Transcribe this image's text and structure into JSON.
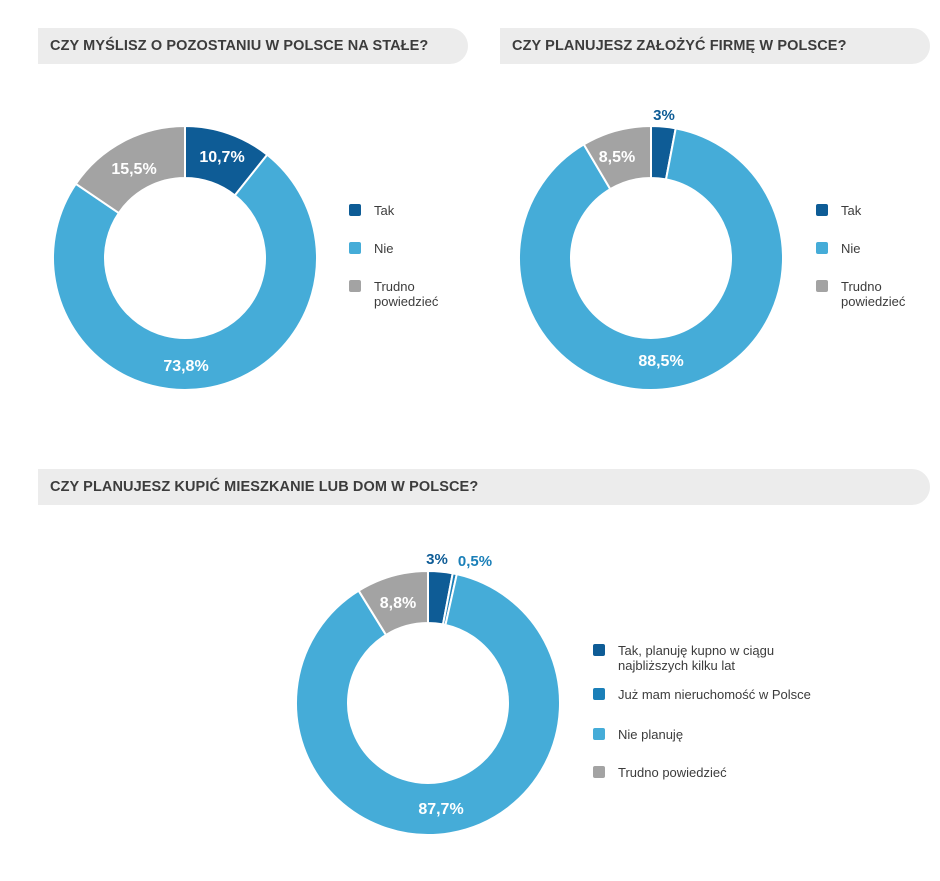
{
  "charts": [
    {
      "title": "CZY MYŚLISZ O POZOSTANIU W POLSCE NA STAŁE?",
      "legend": [
        "Tak",
        "Nie",
        "Trudno\npowiedzieć"
      ]
    },
    {
      "title": "CZY PLANUJESZ ZAŁOŻYĆ FIRMĘ W POLSCE?",
      "legend": [
        "Tak",
        "Nie",
        "Trudno\npowiedzieć"
      ]
    },
    {
      "title": "CZY PLANUJESZ KUPIĆ MIESZKANIE LUB DOM W POLSCE?",
      "legend": [
        "Tak, planuję kupno w ciągu\nnajbliższych kilku lat",
        "Już mam nieruchomość w Polsce",
        "Nie planuję",
        "Trudno powiedzieć"
      ]
    }
  ],
  "colors": {
    "dark_blue": "#0e5c96",
    "mid_blue": "#1a7fb8",
    "light_blue": "#45acd8",
    "gray": "#a3a3a3"
  },
  "chart_data": [
    {
      "type": "pie",
      "title": "CZY MYŚLISZ O POZOSTANIU W POLSCE NA STAŁE?",
      "categories": [
        "Tak",
        "Nie",
        "Trudno powiedzieć"
      ],
      "values": [
        10.7,
        73.8,
        15.5
      ],
      "labels": [
        "10,7%",
        "73,8%",
        "15,5%"
      ],
      "colors": [
        "#0e5c96",
        "#45acd8",
        "#a3a3a3"
      ],
      "donut": true,
      "legend": "right"
    },
    {
      "type": "pie",
      "title": "CZY PLANUJESZ ZAŁOŻYĆ FIRMĘ W POLSCE?",
      "categories": [
        "Tak",
        "Nie",
        "Trudno powiedzieć"
      ],
      "values": [
        3,
        88.5,
        8.5
      ],
      "labels": [
        "3%",
        "88,5%",
        "8,5%"
      ],
      "colors": [
        "#0e5c96",
        "#45acd8",
        "#a3a3a3"
      ],
      "donut": true,
      "legend": "right"
    },
    {
      "type": "pie",
      "title": "CZY PLANUJESZ KUPIĆ MIESZKANIE LUB DOM W POLSCE?",
      "categories": [
        "Tak, planuję kupno w ciągu najbliższych kilku lat",
        "Już mam nieruchomość w Polsce",
        "Nie planuję",
        "Trudno powiedzieć"
      ],
      "values": [
        3,
        0.5,
        87.7,
        8.8
      ],
      "labels": [
        "3%",
        "0,5%",
        "87,7%",
        "8,8%"
      ],
      "colors": [
        "#0e5c96",
        "#1a7fb8",
        "#45acd8",
        "#a3a3a3"
      ],
      "donut": true,
      "legend": "right"
    }
  ]
}
